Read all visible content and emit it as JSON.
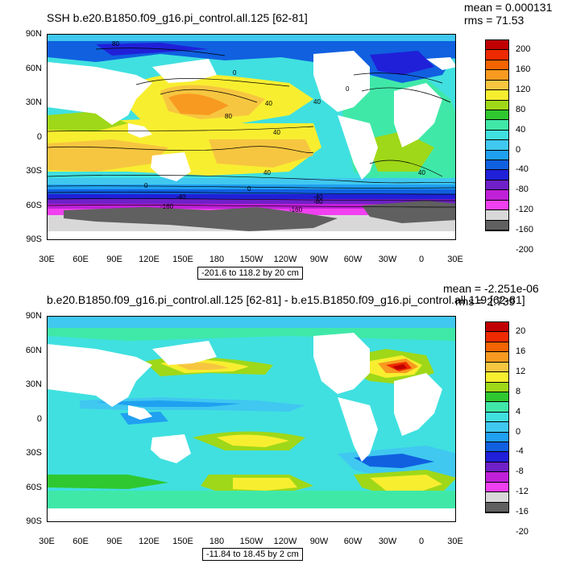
{
  "panels": [
    {
      "title": "SSH b.e20.B1850.f09_g16.pi_control.all.125 [62-81]",
      "stats": {
        "mean": "mean = 0.000131",
        "rms": "rms = 71.53"
      },
      "range_label": "-201.6 to 118.2 by 20 cm",
      "colorbar": {
        "labels": [
          "200",
          "160",
          "120",
          "80",
          "40",
          "0",
          "-40",
          "-80",
          "-120",
          "-160",
          "-200"
        ],
        "colors": [
          "#c00000",
          "#ee2a00",
          "#f46400",
          "#f89a20",
          "#f7c640",
          "#f8ee30",
          "#9fd818",
          "#30c830",
          "#40e8a8",
          "#40e0e0",
          "#40c8f0",
          "#20a0f0",
          "#1060e0",
          "#2020d8",
          "#7020c8",
          "#c020d8",
          "#f040f0",
          "#d8d8d8",
          "#606060"
        ]
      },
      "contour_labels": [
        "80",
        "0",
        "40",
        "80",
        "40",
        "40",
        "40",
        "0",
        "40",
        "0",
        "-40",
        "-40",
        "-80",
        "-160",
        "-160",
        "0"
      ]
    },
    {
      "title": "b.e20.B1850.f09_g16.pi_control.all.125 [62-81] - b.e15.B1850.f09_g16.pi_control.all.119 [62-81]",
      "stats": {
        "mean": "mean = -2.251e-06",
        "rms": "rms = 2.739"
      },
      "range_label": "-11.84 to 18.45 by 2 cm",
      "colorbar": {
        "labels": [
          "20",
          "16",
          "12",
          "8",
          "4",
          "0",
          "-4",
          "-8",
          "-12",
          "-16",
          "-20"
        ],
        "colors": [
          "#c00000",
          "#ee2a00",
          "#f46400",
          "#f89a20",
          "#f7c640",
          "#f8ee30",
          "#9fd818",
          "#30c830",
          "#40e8a8",
          "#40e0e0",
          "#40c8f0",
          "#20a0f0",
          "#1060e0",
          "#2020d8",
          "#7020c8",
          "#c020d8",
          "#f040f0",
          "#d8d8d8",
          "#606060"
        ]
      }
    }
  ],
  "axes": {
    "lat_ticks": [
      "90N",
      "60N",
      "30N",
      "0",
      "30S",
      "60S",
      "90S"
    ],
    "lon_ticks": [
      "30E",
      "60E",
      "90E",
      "120E",
      "150E",
      "180",
      "150W",
      "120W",
      "90W",
      "60W",
      "30W",
      "0",
      "30E"
    ]
  }
}
